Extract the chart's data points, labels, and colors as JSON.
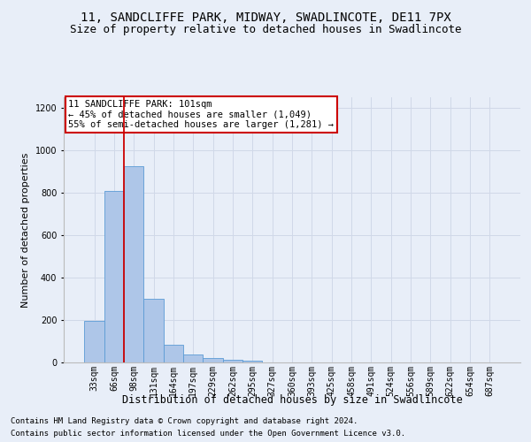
{
  "title": "11, SANDCLIFFE PARK, MIDWAY, SWADLINCOTE, DE11 7PX",
  "subtitle": "Size of property relative to detached houses in Swadlincote",
  "xlabel": "Distribution of detached houses by size in Swadlincote",
  "ylabel": "Number of detached properties",
  "footnote1": "Contains HM Land Registry data © Crown copyright and database right 2024.",
  "footnote2": "Contains public sector information licensed under the Open Government Licence v3.0.",
  "annotation_title": "11 SANDCLIFFE PARK: 101sqm",
  "annotation_line1": "← 45% of detached houses are smaller (1,049)",
  "annotation_line2": "55% of semi-detached houses are larger (1,281) →",
  "bar_labels": [
    "33sqm",
    "66sqm",
    "98sqm",
    "131sqm",
    "164sqm",
    "197sqm",
    "229sqm",
    "262sqm",
    "295sqm",
    "327sqm",
    "360sqm",
    "393sqm",
    "425sqm",
    "458sqm",
    "491sqm",
    "524sqm",
    "556sqm",
    "589sqm",
    "622sqm",
    "654sqm",
    "687sqm"
  ],
  "bar_values": [
    195,
    810,
    925,
    298,
    82,
    38,
    22,
    14,
    10,
    0,
    0,
    0,
    0,
    0,
    0,
    0,
    0,
    0,
    0,
    0,
    0
  ],
  "bar_color": "#aec6e8",
  "bar_edge_color": "#5b9bd5",
  "red_line_color": "#cc0000",
  "annotation_box_color": "#ffffff",
  "annotation_box_edge": "#cc0000",
  "grid_color": "#d0d8e8",
  "bg_color": "#e8eef8",
  "ylim": [
    0,
    1250
  ],
  "yticks": [
    0,
    200,
    400,
    600,
    800,
    1000,
    1200
  ],
  "title_fontsize": 10,
  "subtitle_fontsize": 9,
  "axis_label_fontsize": 8,
  "tick_fontsize": 7,
  "footnote_fontsize": 6.5,
  "annotation_fontsize": 7.5
}
